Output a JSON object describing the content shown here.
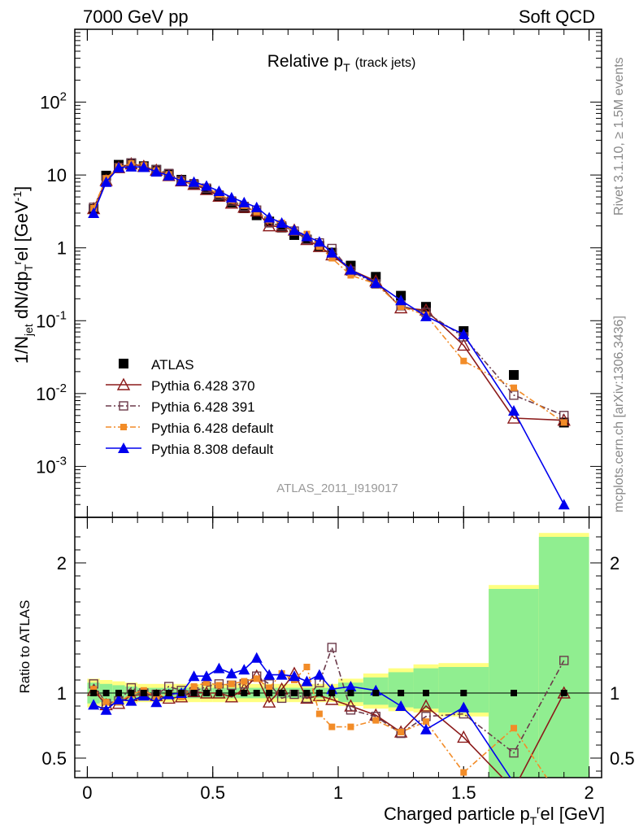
{
  "header": {
    "energy": "7000 GeV pp",
    "process": "Soft QCD",
    "plot_title": "Relative p",
    "plot_title_sub": "T",
    "plot_title_extra": "(track jets)",
    "right_label_top": "Rivet 3.1.10, ≥ 1.5M events",
    "right_label_bottom": "mcplots.cern.ch [arXiv:1306.3436]",
    "analysis_id": "ATLAS_2011_I919017",
    "ylabel_main": "1/N_jet dN/dp_T^rel [GeV^-1]",
    "ylabel_ratio": "Ratio to ATLAS",
    "xlabel": "Charged particle p_T^rel [GeV]"
  },
  "colors": {
    "atlas": "#000000",
    "p370": "#8b1a1a",
    "p391": "#6b3a4a",
    "pdef": "#f28c28",
    "p8": "#0000ee",
    "band_green": "#90ee90",
    "band_yellow": "#ffff80"
  },
  "chart_data": {
    "type": "scatter",
    "x_axis": {
      "range": [
        -0.05,
        2.05
      ],
      "ticks": [
        0,
        0.5,
        1,
        1.5,
        2
      ],
      "tick_labels": [
        "0",
        "0.5",
        "1",
        "1.5",
        "2"
      ]
    },
    "y_axis_main": {
      "scale": "log",
      "range": [
        0.0002,
        1000
      ],
      "tick_labels": [
        "10^-3",
        "10^-2",
        "10^-1",
        "1",
        "10",
        "10^2"
      ]
    },
    "y_axis_ratio": {
      "range": [
        0.35,
        2.35
      ],
      "tick_labels": [
        "0.5",
        "1",
        "2"
      ]
    },
    "x": [
      0.025,
      0.075,
      0.125,
      0.175,
      0.225,
      0.275,
      0.325,
      0.375,
      0.425,
      0.475,
      0.525,
      0.575,
      0.625,
      0.675,
      0.725,
      0.775,
      0.825,
      0.875,
      0.925,
      0.975,
      1.05,
      1.15,
      1.25,
      1.35,
      1.5,
      1.7,
      1.9
    ],
    "series": [
      {
        "name": "ATLAS",
        "key": "atlas",
        "marker": "square-filled",
        "dash": "none",
        "values": [
          3.4,
          9.8,
          13.8,
          14.5,
          13.2,
          11.8,
          10.2,
          8.6,
          7.3,
          6.3,
          5.1,
          4.2,
          3.5,
          2.8,
          2.3,
          1.9,
          1.5,
          1.3,
          1.06,
          0.86,
          0.57,
          0.4,
          0.22,
          0.155,
          0.072,
          0.018,
          0.004
        ],
        "ratio_band": [
          0.92,
          0.93,
          0.94,
          0.95,
          0.96,
          0.96,
          0.96,
          0.96,
          0.96,
          0.96,
          0.96,
          0.96,
          0.96,
          0.96,
          0.96,
          0.96,
          0.96,
          0.96,
          0.96,
          0.96,
          0.93,
          0.91,
          0.89,
          0.88,
          0.85,
          0.0,
          0.0
        ],
        "ratio_band_hi": [
          1.08,
          1.07,
          1.06,
          1.05,
          1.04,
          1.04,
          1.04,
          1.04,
          1.04,
          1.04,
          1.04,
          1.04,
          1.04,
          1.04,
          1.04,
          1.04,
          1.04,
          1.04,
          1.04,
          1.04,
          1.08,
          1.12,
          1.16,
          1.19,
          1.2,
          1.8,
          2.2
        ]
      },
      {
        "name": "Pythia 6.428 370",
        "key": "p370",
        "marker": "triangle-open",
        "dash": "none",
        "values": [
          3.45,
          8.4,
          12.6,
          14.2,
          13.1,
          11.6,
          9.8,
          8.3,
          7.4,
          6.3,
          5.1,
          4.1,
          3.6,
          3.2,
          2.0,
          1.95,
          1.75,
          1.3,
          1.04,
          0.8,
          0.5,
          0.35,
          0.15,
          0.14,
          0.046,
          0.0046,
          0.0043
        ],
        "ratio": [
          1.02,
          0.91,
          0.92,
          0.98,
          0.99,
          0.98,
          0.96,
          0.97,
          1.01,
          1.0,
          1.0,
          0.97,
          1.03,
          1.13,
          0.93,
          1.03,
          1.15,
          0.96,
          0.98,
          0.95,
          0.9,
          0.83,
          0.7,
          0.9,
          0.66,
          0.26,
          1.0
        ]
      },
      {
        "name": "Pythia 6.428 391",
        "key": "p391",
        "marker": "square-open",
        "dash": "dashdot",
        "values": [
          3.6,
          8.6,
          12.7,
          14.6,
          12.8,
          11.8,
          10.5,
          8.4,
          7.6,
          6.6,
          5.3,
          4.4,
          3.7,
          3.3,
          2.2,
          2.0,
          1.7,
          1.3,
          1.17,
          0.98,
          0.48,
          0.32,
          0.16,
          0.13,
          0.06,
          0.0095,
          0.005
        ],
        "ratio": [
          1.07,
          0.92,
          0.94,
          1.04,
          1.0,
          0.99,
          1.05,
          1.02,
          1.01,
          1.05,
          1.07,
          1.06,
          1.07,
          1.13,
          1.07,
          0.96,
          0.99,
          0.96,
          1.08,
          1.35,
          0.87,
          0.82,
          0.69,
          0.82,
          0.84,
          0.54,
          1.25
        ]
      },
      {
        "name": "Pythia 6.428 default",
        "key": "pdef",
        "marker": "square-filled-small",
        "dash": "dashdot",
        "values": [
          3.5,
          9.0,
          12.8,
          14.4,
          13.5,
          11.5,
          10.2,
          8.3,
          7.6,
          6.8,
          5.4,
          4.5,
          3.8,
          3.1,
          2.4,
          2.2,
          1.65,
          1.55,
          1.04,
          0.72,
          0.42,
          0.32,
          0.155,
          0.12,
          0.028,
          0.012,
          0.004
        ],
        "ratio": [
          1.03,
          0.93,
          0.93,
          0.99,
          1.02,
          0.97,
          1.0,
          0.97,
          1.05,
          1.08,
          1.06,
          1.07,
          1.09,
          1.11,
          1.04,
          1.15,
          1.1,
          1.2,
          0.84,
          0.74,
          0.74,
          0.79,
          0.7,
          0.78,
          0.39,
          0.73,
          0.0
        ]
      },
      {
        "name": "Pythia 8.308 default",
        "key": "p8",
        "marker": "triangle-filled",
        "dash": "none",
        "values": [
          3.0,
          8.0,
          12.6,
          13.0,
          12.8,
          11.1,
          9.8,
          8.3,
          8.0,
          7.1,
          6.0,
          4.9,
          4.2,
          3.6,
          2.6,
          2.2,
          1.75,
          1.44,
          1.21,
          0.86,
          0.5,
          0.33,
          0.19,
          0.115,
          0.065,
          0.0058,
          0.0003
        ],
        "ratio": [
          0.91,
          0.87,
          0.95,
          0.94,
          0.98,
          0.93,
          0.99,
          1.0,
          1.13,
          1.13,
          1.19,
          1.15,
          1.18,
          1.27,
          1.14,
          1.14,
          1.13,
          1.09,
          1.14,
          1.03,
          1.05,
          1.02,
          0.9,
          0.72,
          0.89,
          0.31,
          0.0
        ]
      }
    ]
  }
}
